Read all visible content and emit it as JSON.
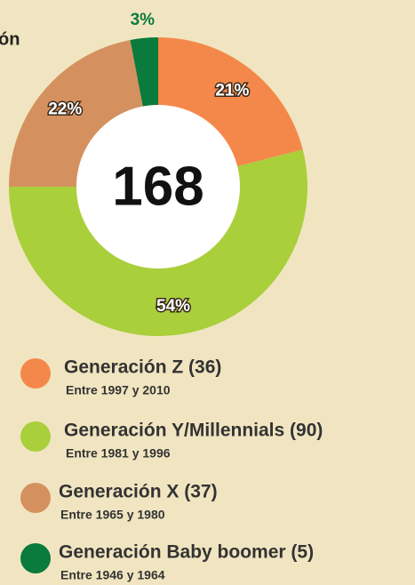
{
  "chart_data": {
    "type": "donut",
    "title": "ón",
    "center_label": "168",
    "categories": [
      "Generación Z (36)",
      "Generación Y/Millennials (90)",
      "Generación X (37)",
      "Generación Baby boomer (5)"
    ],
    "descriptions": [
      "Entre 1997 y 2010",
      "Entre 1981 y 1996",
      "Entre 1965 y 1980",
      "Entre 1946 y 1964"
    ],
    "values": [
      21,
      54,
      22,
      3
    ],
    "value_labels": [
      "21%",
      "54%",
      "22%",
      "3%"
    ],
    "colors": [
      "#f4884a",
      "#a9cf3b",
      "#d4915f",
      "#0a7a3d"
    ]
  }
}
